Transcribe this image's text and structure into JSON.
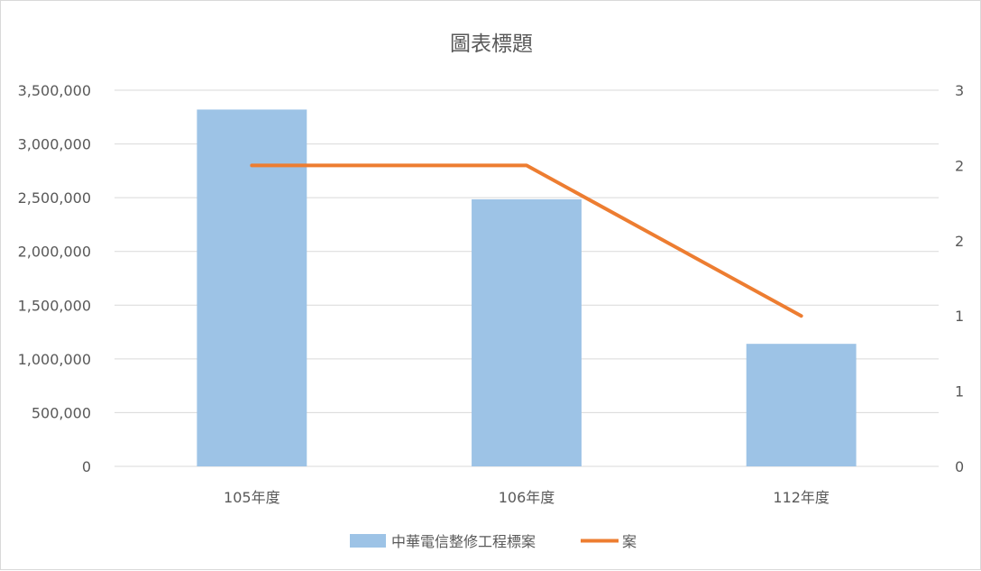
{
  "chart_data": {
    "type": "bar",
    "title": "圖表標題",
    "categories": [
      "105年度",
      "106年度",
      "112年度"
    ],
    "series": [
      {
        "name": "中華電信整修工程標案",
        "type": "bar",
        "axis": "left",
        "color": "#9dc3e6",
        "values": [
          3320000,
          2485000,
          1140000
        ]
      },
      {
        "name": "案",
        "type": "line",
        "axis": "right",
        "color": "#ed7d31",
        "values": [
          2,
          2,
          1
        ]
      }
    ],
    "y_left": {
      "ylim": [
        0,
        3500000
      ],
      "ticks": [
        0,
        500000,
        1000000,
        1500000,
        2000000,
        2500000,
        3000000,
        3500000
      ],
      "tick_labels": [
        "0",
        "500,000",
        "1,000,000",
        "1,500,000",
        "2,000,000",
        "2,500,000",
        "3,000,000",
        "3,500,000"
      ]
    },
    "y_right": {
      "ylim": [
        0,
        2.5
      ],
      "ticks": [
        0,
        0.5,
        1,
        1.5,
        2,
        2.5
      ],
      "tick_labels": [
        "0",
        "1",
        "1",
        "2",
        "2",
        "3"
      ]
    },
    "grid": true,
    "legend": "bottom"
  }
}
